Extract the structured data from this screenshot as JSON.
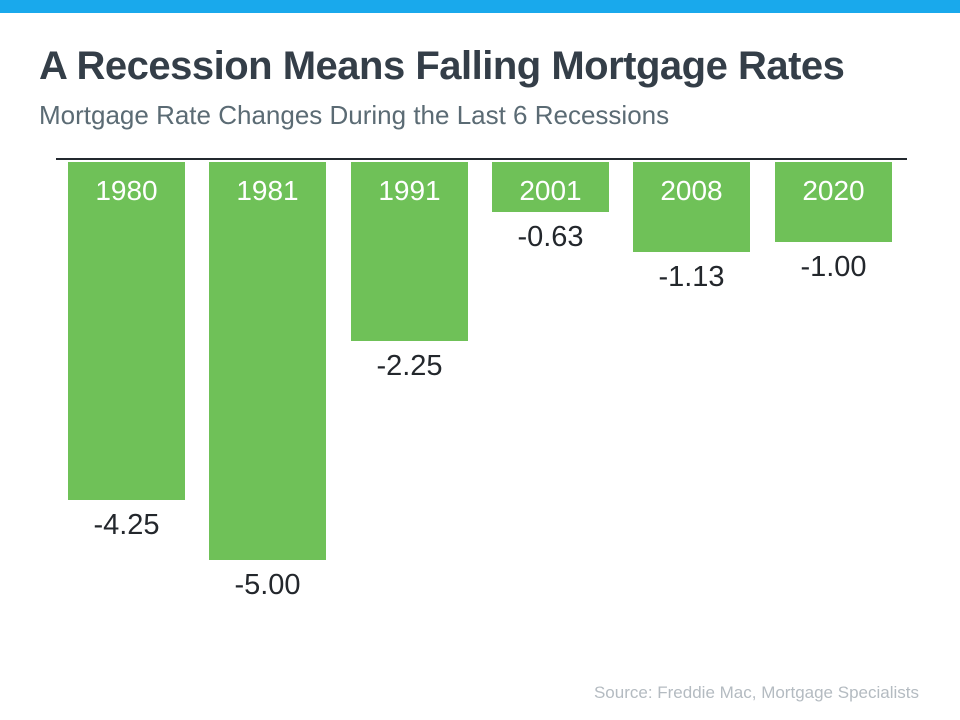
{
  "header": {
    "title": "A Recession Means Falling Mortgage Rates",
    "subtitle": "Mortgage Rate Changes During the Last 6 Recessions"
  },
  "chart_data": {
    "type": "bar",
    "orientation": "vertical",
    "title": "A Recession Means Falling Mortgage Rates",
    "subtitle": "Mortgage Rate Changes During the Last 6 Recessions",
    "categories": [
      "1980",
      "1981",
      "1991",
      "2001",
      "2008",
      "2020"
    ],
    "values": [
      -4.25,
      -5.0,
      -2.25,
      -0.63,
      -1.13,
      -1.0
    ],
    "value_labels": [
      "-4.25",
      "-5.00",
      "-2.25",
      "-0.63",
      "-1.13",
      "-1.00"
    ],
    "baseline": 0,
    "ylim": [
      -5.5,
      0
    ],
    "grid": false,
    "legend": false,
    "category_label_position": "inside-top",
    "value_label_position": "below-bar"
  },
  "footer": {
    "source": "Source: Freddie Mac, Mortgage Specialists"
  },
  "colors": {
    "top_accent_bar": "#19a9ec",
    "bar_fill": "#6fc158",
    "title_text": "#343e48",
    "subtitle_text": "#5b6b74",
    "axis_line": "#23292f",
    "year_label_text": "#ffffff",
    "value_label_text": "#23272c",
    "source_text": "#b4bbc1"
  }
}
